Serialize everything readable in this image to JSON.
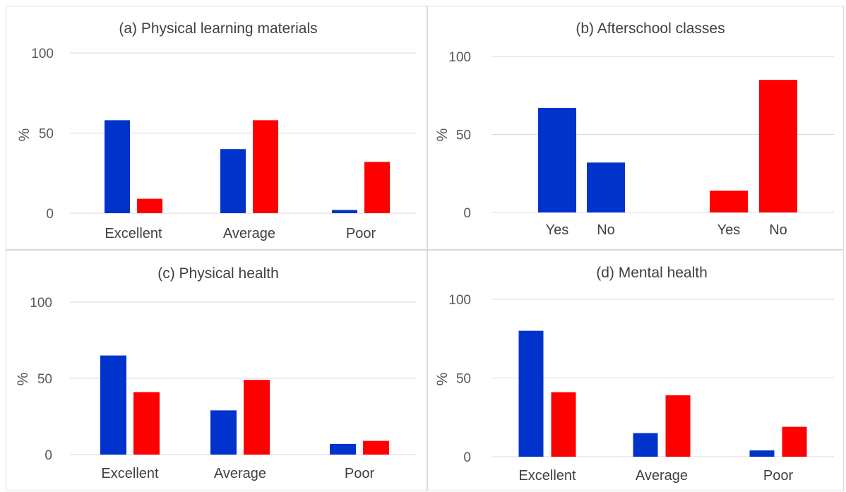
{
  "colors": {
    "blue": "#0033cc",
    "red": "#ff0000",
    "grid": "#d9d9d9",
    "text": "#595959"
  },
  "chart_data": [
    {
      "type": "bar",
      "title": "(a) Physical learning materials",
      "ylabel": "%",
      "ylim": [
        0,
        100
      ],
      "yticks": [
        "0",
        "50",
        "100"
      ],
      "categories": [
        "Excellent",
        "Average",
        "Poor"
      ],
      "series": [
        {
          "color": "#0033cc",
          "values": [
            58,
            40,
            2
          ]
        },
        {
          "color": "#ff0000",
          "values": [
            9,
            58,
            32
          ]
        }
      ]
    },
    {
      "type": "bar",
      "title": "(b) Afterschool classes",
      "ylabel": "%",
      "ylim": [
        0,
        100
      ],
      "yticks": [
        "0",
        "50",
        "100"
      ],
      "categories": [
        "Yes",
        "No",
        "Yes",
        "No"
      ],
      "series": [
        {
          "color": "#0033cc",
          "values": [
            67,
            32,
            null,
            null
          ]
        },
        {
          "color": "#ff0000",
          "values": [
            null,
            null,
            14,
            85
          ]
        }
      ]
    },
    {
      "type": "bar",
      "title": "(c) Physical health",
      "ylabel": "%",
      "ylim": [
        0,
        100
      ],
      "yticks": [
        "0",
        "50",
        "100"
      ],
      "categories": [
        "Excellent",
        "Average",
        "Poor"
      ],
      "series": [
        {
          "color": "#0033cc",
          "values": [
            65,
            29,
            7
          ]
        },
        {
          "color": "#ff0000",
          "values": [
            41,
            49,
            9
          ]
        }
      ]
    },
    {
      "type": "bar",
      "title": "(d) Mental health",
      "ylabel": "%",
      "ylim": [
        0,
        100
      ],
      "yticks": [
        "0",
        "50",
        "100"
      ],
      "categories": [
        "Excellent",
        "Average",
        "Poor"
      ],
      "series": [
        {
          "color": "#0033cc",
          "values": [
            80,
            15,
            4
          ]
        },
        {
          "color": "#ff0000",
          "values": [
            41,
            39,
            19
          ]
        }
      ]
    }
  ]
}
